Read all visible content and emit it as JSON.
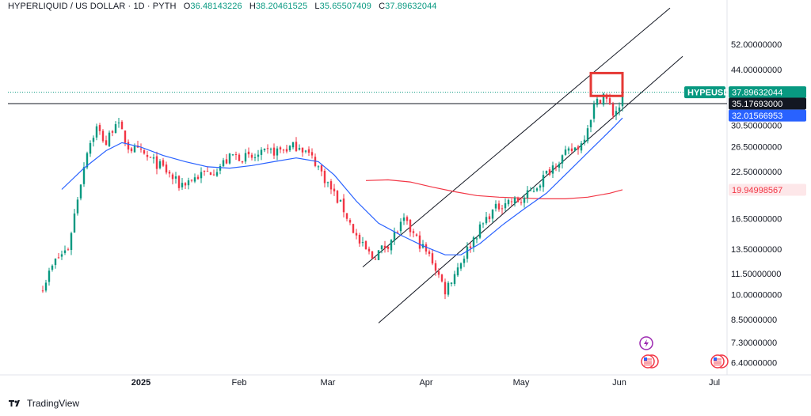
{
  "header": {
    "symbol": "HYPERLIQUID / US DOLLAR · 1D · PYTH",
    "o_label": "O",
    "o": "36.48143226",
    "h_label": "H",
    "h": "38.20461525",
    "l_label": "L",
    "l": "35.65507409",
    "c_label": "C",
    "c": "37.89632044"
  },
  "footer": {
    "brand": "TradingView"
  },
  "colors": {
    "up": "#089981",
    "down": "#f23645",
    "ma_fast": "#2962ff",
    "ma_slow": "#f23645",
    "channel": "#131722",
    "highlight_box": "#e53935"
  },
  "icons": [
    "lightning-event-icon",
    "us-flag-event-icon",
    "us-flag-event-icon"
  ],
  "chart_data": {
    "type": "candlestick",
    "y_scale": "log",
    "ylim": [
      5.9,
      64
    ],
    "y_ticks": [
      {
        "label": "52.00000000",
        "value": 52.0
      },
      {
        "label": "44.00000000",
        "value": 44.0
      },
      {
        "label": "30.50000000",
        "value": 30.5
      },
      {
        "label": "26.50000000",
        "value": 26.5
      },
      {
        "label": "22.50000000",
        "value": 22.5
      },
      {
        "label": "16.50000000",
        "value": 16.5
      },
      {
        "label": "13.50000000",
        "value": 13.5
      },
      {
        "label": "11.50000000",
        "value": 11.5
      },
      {
        "label": "10.00000000",
        "value": 10.0
      },
      {
        "label": "8.50000000",
        "value": 8.5
      },
      {
        "label": "7.30000000",
        "value": 7.3
      },
      {
        "label": "6.40000000",
        "value": 6.4
      }
    ],
    "x_ticks": [
      {
        "label": "2025",
        "date": "2025-01-01"
      },
      {
        "label": "Feb",
        "date": "2025-02-01"
      },
      {
        "label": "Mar",
        "date": "2025-03-01"
      },
      {
        "label": "Apr",
        "date": "2025-04-01"
      },
      {
        "label": "May",
        "date": "2025-05-01"
      },
      {
        "label": "Jun",
        "date": "2025-06-01"
      },
      {
        "label": "Jul",
        "date": "2025-07-01"
      }
    ],
    "price_labels": [
      {
        "text": "HYPEUSD",
        "value": 37.89632044,
        "role": "symbol"
      },
      {
        "text": "37.89632044",
        "value": 37.89632044,
        "role": "last"
      },
      {
        "text": "35.17693000",
        "value": 35.17693,
        "role": "horizontal-line"
      },
      {
        "text": "32.01566953",
        "value": 32.01566953,
        "role": "ma-fast"
      },
      {
        "text": "19.94998567",
        "value": 19.94998567,
        "role": "ma-slow"
      }
    ],
    "horizontal_line": 35.17693,
    "last_price": 37.89632044,
    "anchors": [
      {
        "date": "2024-12-01",
        "price": 10.6
      },
      {
        "date": "2024-12-05",
        "price": 12.5
      },
      {
        "date": "2024-12-09",
        "price": 13.6
      },
      {
        "date": "2024-12-12",
        "price": 19.0
      },
      {
        "date": "2024-12-15",
        "price": 26.0
      },
      {
        "date": "2024-12-18",
        "price": 30.0
      },
      {
        "date": "2024-12-21",
        "price": 27.0
      },
      {
        "date": "2024-12-24",
        "price": 31.5
      },
      {
        "date": "2024-12-28",
        "price": 26.5
      },
      {
        "date": "2025-01-02",
        "price": 25.0
      },
      {
        "date": "2025-01-08",
        "price": 23.0
      },
      {
        "date": "2025-01-13",
        "price": 20.6
      },
      {
        "date": "2025-01-20",
        "price": 22.0
      },
      {
        "date": "2025-01-25",
        "price": 23.0
      },
      {
        "date": "2025-01-30",
        "price": 25.0
      },
      {
        "date": "2025-02-05",
        "price": 24.5
      },
      {
        "date": "2025-02-10",
        "price": 25.5
      },
      {
        "date": "2025-02-15",
        "price": 26.0
      },
      {
        "date": "2025-02-20",
        "price": 26.8
      },
      {
        "date": "2025-02-25",
        "price": 24.0
      },
      {
        "date": "2025-03-02",
        "price": 20.0
      },
      {
        "date": "2025-03-06",
        "price": 17.5
      },
      {
        "date": "2025-03-11",
        "price": 14.0
      },
      {
        "date": "2025-03-15",
        "price": 12.8
      },
      {
        "date": "2025-03-20",
        "price": 14.0
      },
      {
        "date": "2025-03-25",
        "price": 16.2
      },
      {
        "date": "2025-03-30",
        "price": 14.0
      },
      {
        "date": "2025-04-03",
        "price": 12.5
      },
      {
        "date": "2025-04-07",
        "price": 10.3
      },
      {
        "date": "2025-04-11",
        "price": 12.0
      },
      {
        "date": "2025-04-16",
        "price": 14.5
      },
      {
        "date": "2025-04-21",
        "price": 17.0
      },
      {
        "date": "2025-04-26",
        "price": 18.5
      },
      {
        "date": "2025-05-01",
        "price": 18.5
      },
      {
        "date": "2025-05-06",
        "price": 20.5
      },
      {
        "date": "2025-05-12",
        "price": 24.0
      },
      {
        "date": "2025-05-16",
        "price": 25.5
      },
      {
        "date": "2025-05-20",
        "price": 27.0
      },
      {
        "date": "2025-05-24",
        "price": 34.5
      },
      {
        "date": "2025-05-27",
        "price": 37.5
      },
      {
        "date": "2025-05-30",
        "price": 33.0
      },
      {
        "date": "2025-06-01",
        "price": 34.5
      },
      {
        "date": "2025-06-02",
        "price": 37.9
      }
    ],
    "ma_fast": [
      {
        "date": "2024-12-07",
        "price": 20.0
      },
      {
        "date": "2024-12-14",
        "price": 23.0
      },
      {
        "date": "2024-12-21",
        "price": 25.8
      },
      {
        "date": "2024-12-26",
        "price": 27.2
      },
      {
        "date": "2025-01-01",
        "price": 26.4
      },
      {
        "date": "2025-01-08",
        "price": 25.0
      },
      {
        "date": "2025-01-15",
        "price": 24.0
      },
      {
        "date": "2025-01-22",
        "price": 23.2
      },
      {
        "date": "2025-01-29",
        "price": 23.0
      },
      {
        "date": "2025-02-05",
        "price": 23.4
      },
      {
        "date": "2025-02-12",
        "price": 24.0
      },
      {
        "date": "2025-02-19",
        "price": 24.6
      },
      {
        "date": "2025-02-26",
        "price": 24.0
      },
      {
        "date": "2025-03-03",
        "price": 22.0
      },
      {
        "date": "2025-03-10",
        "price": 18.5
      },
      {
        "date": "2025-03-17",
        "price": 16.0
      },
      {
        "date": "2025-03-24",
        "price": 14.8
      },
      {
        "date": "2025-03-31",
        "price": 13.8
      },
      {
        "date": "2025-04-07",
        "price": 13.0
      },
      {
        "date": "2025-04-12",
        "price": 13.0
      },
      {
        "date": "2025-04-18",
        "price": 14.0
      },
      {
        "date": "2025-04-25",
        "price": 15.8
      },
      {
        "date": "2025-05-02",
        "price": 17.6
      },
      {
        "date": "2025-05-09",
        "price": 19.5
      },
      {
        "date": "2025-05-16",
        "price": 22.5
      },
      {
        "date": "2025-05-23",
        "price": 26.0
      },
      {
        "date": "2025-05-30",
        "price": 30.0
      },
      {
        "date": "2025-06-02",
        "price": 32.0
      }
    ],
    "ma_slow": [
      {
        "date": "2025-03-13",
        "price": 21.2
      },
      {
        "date": "2025-03-20",
        "price": 21.3
      },
      {
        "date": "2025-03-27",
        "price": 21.0
      },
      {
        "date": "2025-04-03",
        "price": 20.3
      },
      {
        "date": "2025-04-10",
        "price": 19.7
      },
      {
        "date": "2025-04-17",
        "price": 19.2
      },
      {
        "date": "2025-04-24",
        "price": 19.0
      },
      {
        "date": "2025-05-01",
        "price": 18.9
      },
      {
        "date": "2025-05-08",
        "price": 18.8
      },
      {
        "date": "2025-05-15",
        "price": 18.8
      },
      {
        "date": "2025-05-22",
        "price": 19.0
      },
      {
        "date": "2025-05-29",
        "price": 19.5
      },
      {
        "date": "2025-06-02",
        "price": 19.95
      }
    ],
    "channel_upper": [
      {
        "date": "2025-03-12",
        "price": 12.0
      },
      {
        "date": "2025-06-17",
        "price": 66.0
      }
    ],
    "channel_lower": [
      {
        "date": "2025-03-17",
        "price": 8.3
      },
      {
        "date": "2025-06-21",
        "price": 48.0
      }
    ],
    "highlight_box": {
      "from": "2025-05-23",
      "to": "2025-06-02",
      "price_low": 37.0,
      "price_high": 43.0
    }
  }
}
